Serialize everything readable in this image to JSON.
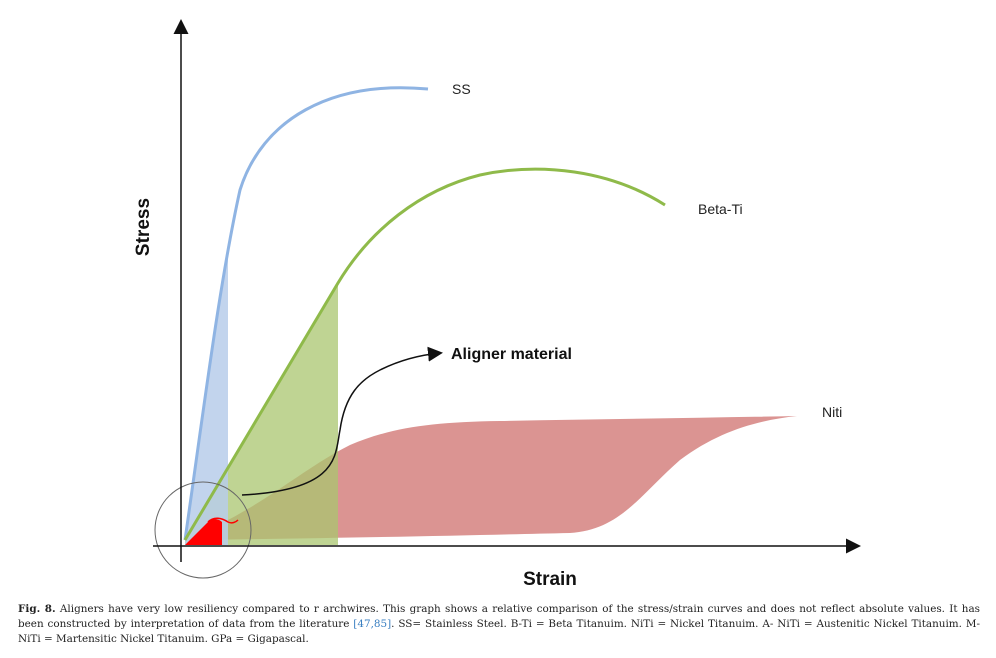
{
  "diagram": {
    "x_axis_label": "Strain",
    "y_axis_label": "Stress",
    "curves": [
      {
        "id": "ss",
        "label": "SS",
        "color": "#8fb4e3"
      },
      {
        "id": "beta-ti",
        "label": "Beta-Ti",
        "color": "#8fba4a"
      },
      {
        "id": "niti",
        "label": "Niti",
        "color": "#d98e8c"
      }
    ],
    "annotation": "Aligner material",
    "colors": {
      "ss_fill": "#b7cdea",
      "beta_fill": "#a9c66f",
      "niti_fill": "#d98e8c",
      "aligner_fill": "#ff0000",
      "axis": "#111111"
    }
  },
  "caption": {
    "label": "Fig. 8.",
    "text_before_refs": "Aligners have very low resiliency compared to r archwires. This graph shows a relative comparison of the stress/strain curves and does not reflect absolute values. It has been constructed by interpretation of data from the literature ",
    "refs": "[47,85]",
    "text_after_refs": ". SS= Stainless Steel. B-Ti = Beta Titanuim. NiTi = Nickel Titanuim. A- NiTi = Austenitic Nickel Titanuim. M-NiTi = Martensitic Nickel Titanuim. GPa = Gigapascal."
  }
}
